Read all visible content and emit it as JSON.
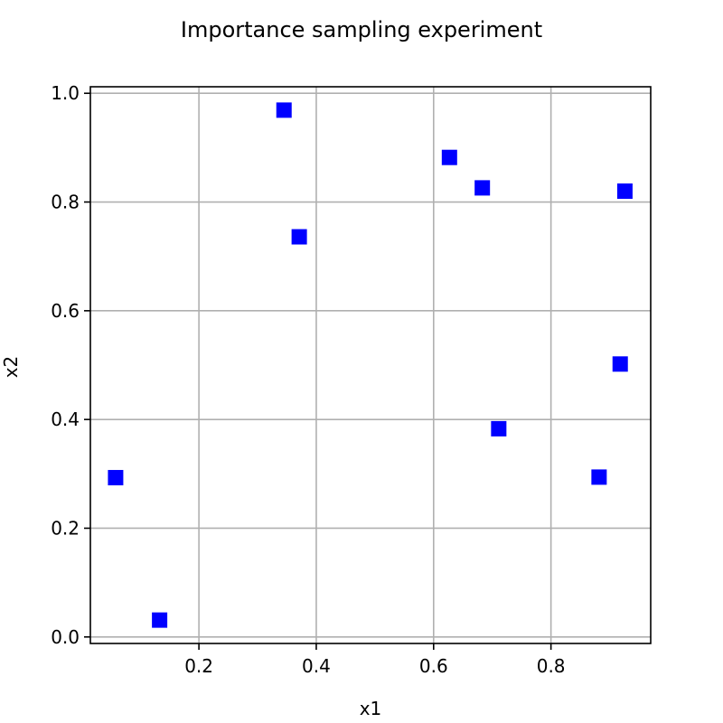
{
  "chart_data": {
    "type": "scatter",
    "title": "Importance sampling experiment",
    "xlabel": "x1",
    "ylabel": "x2",
    "xlim": [
      0.015,
      0.97
    ],
    "ylim": [
      -0.012,
      1.012
    ],
    "xticks": [
      0.2,
      0.4,
      0.6,
      0.8
    ],
    "xtick_labels": [
      "0.2",
      "0.4",
      "0.6",
      "0.8"
    ],
    "yticks": [
      0.0,
      0.2,
      0.4,
      0.6,
      0.8,
      1.0
    ],
    "ytick_labels": [
      "0.0",
      "0.2",
      "0.4",
      "0.6",
      "0.8",
      "1.0"
    ],
    "grid": true,
    "marker": "square",
    "marker_color": "#0000ff",
    "points": [
      {
        "x": 0.058,
        "y": 0.293
      },
      {
        "x": 0.133,
        "y": 0.031
      },
      {
        "x": 0.345,
        "y": 0.969
      },
      {
        "x": 0.371,
        "y": 0.736
      },
      {
        "x": 0.627,
        "y": 0.882
      },
      {
        "x": 0.683,
        "y": 0.826
      },
      {
        "x": 0.711,
        "y": 0.383
      },
      {
        "x": 0.882,
        "y": 0.294
      },
      {
        "x": 0.918,
        "y": 0.502
      },
      {
        "x": 0.926,
        "y": 0.82
      }
    ]
  }
}
